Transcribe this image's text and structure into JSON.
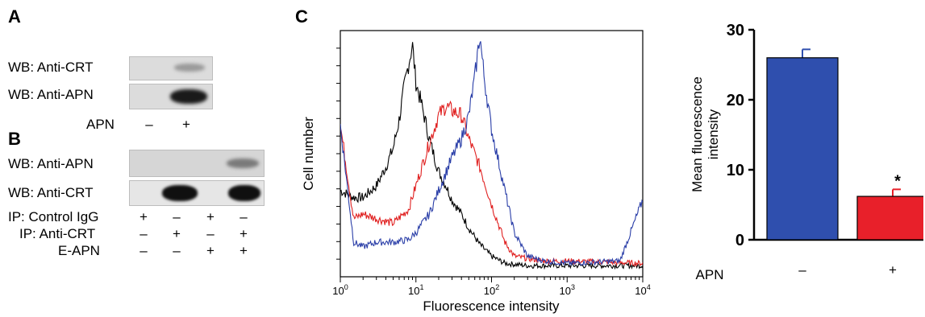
{
  "panel_a": {
    "letter": "A",
    "rows": [
      "WB: Anti-CRT",
      "WB: Anti-APN"
    ],
    "condition_label": "APN",
    "condition_values": [
      "–",
      "+"
    ]
  },
  "panel_b": {
    "letter": "B",
    "rows": [
      "WB: Anti-APN",
      "WB: Anti-CRT"
    ],
    "conditions": [
      {
        "label": "IP: Control IgG",
        "values": [
          "+",
          "–",
          "+",
          "–"
        ]
      },
      {
        "label": "IP: Anti-CRT",
        "values": [
          "–",
          "+",
          "–",
          "+"
        ]
      },
      {
        "label": "E-APN",
        "values": [
          "–",
          "–",
          "+",
          "+"
        ]
      }
    ]
  },
  "panel_c": {
    "letter": "C"
  },
  "chart_data": [
    {
      "type": "line",
      "xlabel": "Fluorescence intensity",
      "ylabel": "Cell number",
      "x_scale": "log",
      "xlim": [
        1,
        10000
      ],
      "x_tick_labels": [
        "10^0",
        "10^1",
        "10^2",
        "10^3",
        "10^4"
      ],
      "series": [
        {
          "color": "#000000",
          "x": [
            1,
            1.5,
            2,
            3,
            4,
            5,
            6,
            7,
            8,
            9,
            10,
            12,
            15,
            20,
            25,
            30,
            40,
            50,
            70,
            100,
            150,
            300,
            1000,
            10000
          ],
          "y": [
            0.34,
            0.31,
            0.31,
            0.36,
            0.44,
            0.52,
            0.64,
            0.78,
            0.88,
            0.96,
            0.8,
            0.7,
            0.56,
            0.42,
            0.36,
            0.3,
            0.24,
            0.18,
            0.11,
            0.06,
            0.03,
            0.02,
            0.02,
            0.02
          ]
        },
        {
          "color": "#e02020",
          "x": [
            1,
            1.5,
            2,
            3,
            5,
            8,
            10,
            15,
            20,
            25,
            30,
            40,
            50,
            70,
            100,
            150,
            200,
            300,
            500,
            1000,
            10000
          ],
          "y": [
            0.62,
            0.22,
            0.24,
            0.22,
            0.2,
            0.26,
            0.36,
            0.54,
            0.66,
            0.7,
            0.68,
            0.66,
            0.56,
            0.44,
            0.28,
            0.12,
            0.06,
            0.05,
            0.04,
            0.04,
            0.03
          ]
        },
        {
          "color": "#2b3fa8",
          "x": [
            1,
            1.5,
            2,
            3,
            5,
            8,
            10,
            15,
            20,
            30,
            40,
            50,
            60,
            70,
            80,
            100,
            150,
            200,
            300,
            500,
            1000,
            5000,
            10000
          ],
          "y": [
            0.62,
            0.12,
            0.1,
            0.12,
            0.12,
            0.13,
            0.16,
            0.24,
            0.34,
            0.48,
            0.56,
            0.66,
            0.82,
            1.0,
            0.82,
            0.6,
            0.34,
            0.16,
            0.06,
            0.04,
            0.03,
            0.04,
            0.3
          ]
        }
      ]
    },
    {
      "type": "bar",
      "ylabel": "Mean fluorescence intensity",
      "ylim": [
        0,
        30
      ],
      "y_ticks": [
        0,
        10,
        20,
        30
      ],
      "x_axis_label": "APN",
      "categories": [
        "–",
        "+"
      ],
      "values": [
        26,
        6.2
      ],
      "errors": [
        1.2,
        1.0
      ],
      "colors": [
        "#2f4fae",
        "#e8202a"
      ],
      "annotations": [
        "",
        "*"
      ]
    }
  ]
}
